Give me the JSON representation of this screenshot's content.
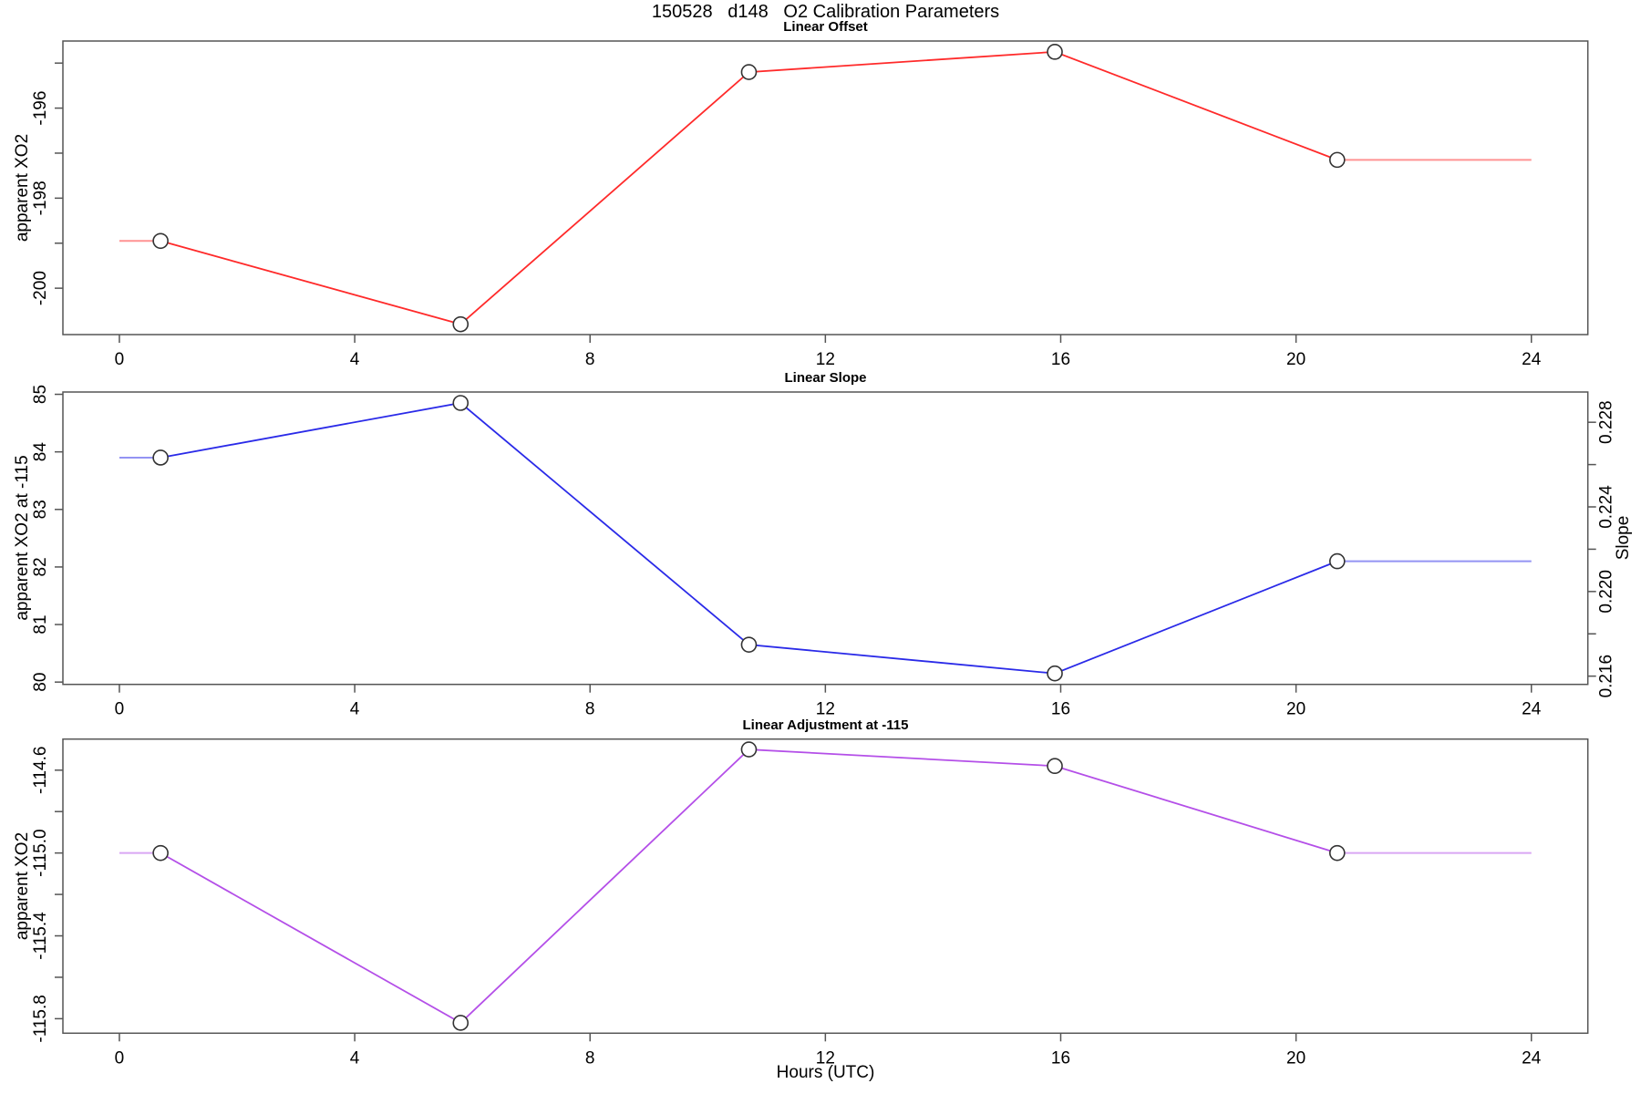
{
  "title": "150528   d148   O2 Calibration Parameters",
  "xlabel": "Hours (UTC)",
  "colors": {
    "offset_line": "#ff2a2a",
    "slope_line": "#2a2ae8",
    "adjustment_line": "#b44fe8",
    "axis": "#555555",
    "marker_stroke": "#333333",
    "text": "#000000"
  },
  "chart_data": [
    {
      "type": "line",
      "title": "Linear Offset",
      "ylabel": "apparent XO2",
      "series_name": "offset",
      "x": [
        0.7,
        5.8,
        10.7,
        15.9,
        20.7
      ],
      "y": [
        -198.95,
        -200.8,
        -195.2,
        -194.75,
        -197.15
      ],
      "edge_extension": {
        "from_x": 0,
        "to_x": 24,
        "note": "flat faded segments to plot edges"
      },
      "xlim": [
        0,
        24
      ],
      "xticks": [
        {
          "v": 0,
          "label": "0"
        },
        {
          "v": 4,
          "label": "4"
        },
        {
          "v": 8,
          "label": "8"
        },
        {
          "v": 12,
          "label": "12"
        },
        {
          "v": 16,
          "label": "16"
        },
        {
          "v": 20,
          "label": "20"
        },
        {
          "v": 24,
          "label": "24"
        }
      ],
      "ylim_plot": [
        -201.03,
        -194.51
      ],
      "yticks": [
        {
          "v": -195,
          "label": ""
        },
        {
          "v": -196,
          "label": "-196"
        },
        {
          "v": -197,
          "label": ""
        },
        {
          "v": -198,
          "label": "-198"
        },
        {
          "v": -199,
          "label": ""
        },
        {
          "v": -200,
          "label": "-200"
        }
      ],
      "grid": false,
      "marker": "open-circle"
    },
    {
      "type": "line",
      "title": "Linear Slope",
      "ylabel": "apparent XO2 at -115",
      "y2label": "Slope",
      "series_name": "slope",
      "x": [
        0.7,
        5.8,
        10.7,
        15.9,
        20.7
      ],
      "y": [
        83.9,
        84.85,
        80.65,
        80.15,
        82.1
      ],
      "y2": [
        0.2263,
        0.229,
        0.2175,
        0.2161,
        0.2214
      ],
      "edge_extension": {
        "from_x": 0,
        "to_x": 24,
        "note": "flat faded segments to plot edges"
      },
      "xlim": [
        0,
        24
      ],
      "xticks": [
        {
          "v": 0,
          "label": "0"
        },
        {
          "v": 4,
          "label": "4"
        },
        {
          "v": 8,
          "label": "8"
        },
        {
          "v": 12,
          "label": "12"
        },
        {
          "v": 16,
          "label": "16"
        },
        {
          "v": 20,
          "label": "20"
        },
        {
          "v": 24,
          "label": "24"
        }
      ],
      "ylim_plot": [
        79.96,
        85.04
      ],
      "yticks": [
        {
          "v": 80,
          "label": "80"
        },
        {
          "v": 81,
          "label": "81"
        },
        {
          "v": 82,
          "label": "82"
        },
        {
          "v": 83,
          "label": "83"
        },
        {
          "v": 84,
          "label": "84"
        },
        {
          "v": 85,
          "label": "85"
        }
      ],
      "y2lim_plot": [
        0.21561,
        0.22943
      ],
      "y2ticks": [
        {
          "v": 0.216,
          "label": "0.216"
        },
        {
          "v": 0.218,
          "label": ""
        },
        {
          "v": 0.22,
          "label": "0.220"
        },
        {
          "v": 0.222,
          "label": ""
        },
        {
          "v": 0.224,
          "label": "0.224"
        },
        {
          "v": 0.226,
          "label": ""
        },
        {
          "v": 0.228,
          "label": "0.228"
        }
      ],
      "grid": false,
      "marker": "open-circle"
    },
    {
      "type": "line",
      "title": "Linear Adjustment at -115",
      "ylabel": "apparent XO2",
      "series_name": "adjustment",
      "x": [
        0.7,
        5.8,
        10.7,
        15.9,
        20.7
      ],
      "y": [
        -115.0,
        -115.82,
        -114.5,
        -114.58,
        -115.0
      ],
      "edge_extension": {
        "from_x": 0,
        "to_x": 24,
        "note": "flat faded segments to plot edges"
      },
      "xlim": [
        0,
        24
      ],
      "xticks": [
        {
          "v": 0,
          "label": "0"
        },
        {
          "v": 4,
          "label": "4"
        },
        {
          "v": 8,
          "label": "8"
        },
        {
          "v": 12,
          "label": "12"
        },
        {
          "v": 16,
          "label": "16"
        },
        {
          "v": 20,
          "label": "20"
        },
        {
          "v": 24,
          "label": "24"
        }
      ],
      "ylim_plot": [
        -115.87,
        -114.45
      ],
      "yticks": [
        {
          "v": -114.6,
          "label": "-114.6"
        },
        {
          "v": -114.8,
          "label": ""
        },
        {
          "v": -115.0,
          "label": "-115.0"
        },
        {
          "v": -115.2,
          "label": ""
        },
        {
          "v": -115.4,
          "label": "-115.4"
        },
        {
          "v": -115.6,
          "label": ""
        },
        {
          "v": -115.8,
          "label": "-115.8"
        }
      ],
      "grid": false,
      "marker": "open-circle"
    }
  ]
}
